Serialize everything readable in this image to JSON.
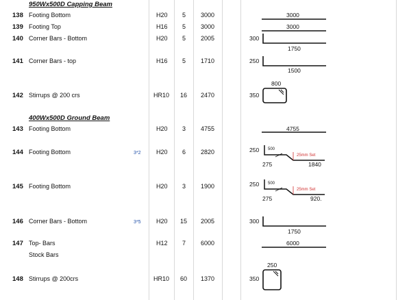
{
  "sections": {
    "s1": "950Wx500D Capping Beam",
    "s2": "400Wx500D Ground Beam"
  },
  "rows": [
    {
      "no": "138",
      "desc": "Footing Bottom",
      "bar": "H20",
      "qty": "5",
      "len": "3000",
      "shape": {
        "top": "3000"
      }
    },
    {
      "no": "139",
      "desc": "Footing Top",
      "bar": "H16",
      "qty": "5",
      "len": "3000",
      "shape": {
        "top": "3000"
      }
    },
    {
      "no": "140",
      "desc": "Corner Bars - Bottom",
      "bar": "H20",
      "qty": "5",
      "len": "2005",
      "shape": {
        "left": "300",
        "bottom": "1750"
      }
    },
    {
      "no": "141",
      "desc": "Corner Bars - top",
      "bar": "H16",
      "qty": "5",
      "len": "1710",
      "shape": {
        "left": "250",
        "bottom": "1500"
      }
    },
    {
      "no": "142",
      "desc": "Stirrups @ 200 crs",
      "bar": "HR10",
      "qty": "16",
      "len": "2470",
      "shape": {
        "left": "350",
        "top": "800"
      }
    },
    {
      "no": "143",
      "desc": "Footing Bottom",
      "bar": "H20",
      "qty": "3",
      "len": "4755",
      "shape": {
        "top": "4755"
      }
    },
    {
      "no": "144",
      "desc": "Footing Bottom",
      "mult": "3*2",
      "bar": "H20",
      "qty": "6",
      "len": "2820",
      "shape": {
        "left": "250",
        "inner": "500",
        "set": "25mm Set",
        "a": "275",
        "b": "1840"
      }
    },
    {
      "no": "145",
      "desc": "Footing Bottom",
      "bar": "H20",
      "qty": "3",
      "len": "1900",
      "shape": {
        "left": "250",
        "inner": "500",
        "set": "25mm Set",
        "a": "275",
        "b": "920."
      }
    },
    {
      "no": "146",
      "desc": "Corner Bars - Bottom",
      "mult": "3*5",
      "bar": "H20",
      "qty": "15",
      "len": "2005",
      "shape": {
        "left": "300",
        "bottom": "1750"
      }
    },
    {
      "no": "147",
      "desc": "Top- Bars",
      "bar": "H12",
      "qty": "7",
      "len": "6000",
      "shape": {
        "top": "6000"
      }
    },
    {
      "no": "",
      "desc": "Stock Bars"
    },
    {
      "no": "148",
      "desc": "Stirrups @ 200crs",
      "bar": "HR10",
      "qty": "60",
      "len": "1370",
      "shape": {
        "left": "350",
        "top": "250"
      }
    }
  ]
}
